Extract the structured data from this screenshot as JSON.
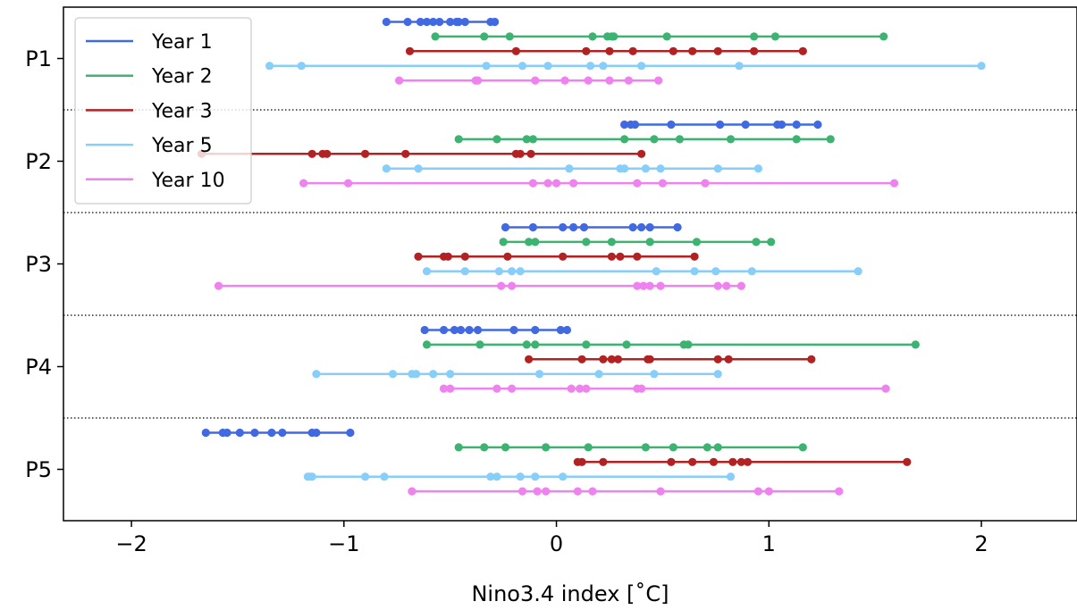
{
  "chart_data": {
    "type": "scatter",
    "title": "",
    "xlabel": "Nino3.4 index [˚C]",
    "ylabel": "",
    "xlim": [
      -2.32,
      2.45
    ],
    "x_ticks": [
      -2,
      -1,
      0,
      1,
      2
    ],
    "x_tick_labels": [
      "−2",
      "−1",
      "0",
      "1",
      "2"
    ],
    "categories": [
      "P1",
      "P2",
      "P3",
      "P4",
      "P5"
    ],
    "legend_position": "upper-left",
    "grid": false,
    "separator_style": "dotted",
    "series": [
      {
        "name": "Year 1",
        "color": "#4169e1"
      },
      {
        "name": "Year 2",
        "color": "#3cb371"
      },
      {
        "name": "Year 3",
        "color": "#b22222"
      },
      {
        "name": "Year 5",
        "color": "#87cefa"
      },
      {
        "name": "Year 10",
        "color": "#ee82ee"
      }
    ],
    "groups": [
      {
        "category": "P1",
        "values": [
          [
            -0.8,
            -0.7,
            -0.64,
            -0.61,
            -0.58,
            -0.55,
            -0.5,
            -0.47,
            -0.46,
            -0.43,
            -0.31,
            -0.29
          ],
          [
            -0.57,
            -0.34,
            -0.22,
            0.17,
            0.24,
            0.26,
            0.27,
            0.52,
            0.93,
            1.03,
            1.54
          ],
          [
            -0.69,
            -0.19,
            0.14,
            0.25,
            0.36,
            0.55,
            0.64,
            0.76,
            0.93,
            1.16
          ],
          [
            -1.35,
            -1.2,
            -0.33,
            -0.16,
            -0.04,
            0.16,
            0.22,
            0.4,
            0.86,
            2.0
          ],
          [
            -0.74,
            -0.38,
            -0.37,
            -0.1,
            0.04,
            0.15,
            0.25,
            0.34,
            0.48
          ]
        ]
      },
      {
        "category": "P2",
        "values": [
          [
            0.32,
            0.35,
            0.37,
            0.54,
            0.77,
            0.89,
            1.04,
            1.06,
            1.13,
            1.23
          ],
          [
            -0.46,
            -0.28,
            -0.14,
            -0.11,
            0.32,
            0.46,
            0.58,
            0.82,
            1.13,
            1.29
          ],
          [
            -1.67,
            -1.15,
            -1.1,
            -1.08,
            -0.9,
            -0.71,
            -0.19,
            -0.17,
            -0.12,
            0.4
          ],
          [
            -0.8,
            -0.65,
            0.06,
            0.3,
            0.32,
            0.42,
            0.49,
            0.76,
            0.95
          ],
          [
            -1.19,
            -0.98,
            -0.11,
            -0.04,
            0.0,
            0.08,
            0.38,
            0.5,
            0.7,
            1.59
          ]
        ]
      },
      {
        "category": "P3",
        "values": [
          [
            -0.24,
            -0.11,
            0.03,
            0.08,
            0.13,
            0.36,
            0.4,
            0.44,
            0.57
          ],
          [
            -0.25,
            -0.13,
            -0.1,
            0.14,
            0.26,
            0.44,
            0.66,
            0.94,
            1.01
          ],
          [
            -0.65,
            -0.53,
            -0.51,
            -0.43,
            -0.23,
            0.03,
            0.26,
            0.3,
            0.38,
            0.65
          ],
          [
            -0.61,
            -0.43,
            -0.27,
            -0.21,
            -0.17,
            0.47,
            0.65,
            0.75,
            0.92,
            1.42
          ],
          [
            -1.59,
            -0.26,
            -0.21,
            0.38,
            0.41,
            0.44,
            0.49,
            0.76,
            0.8,
            0.87
          ]
        ]
      },
      {
        "category": "P4",
        "values": [
          [
            -0.62,
            -0.53,
            -0.48,
            -0.45,
            -0.41,
            -0.37,
            -0.2,
            -0.1,
            0.02,
            0.05
          ],
          [
            -0.61,
            -0.36,
            -0.14,
            -0.1,
            0.14,
            0.33,
            0.6,
            0.62,
            1.69
          ],
          [
            -0.13,
            0.12,
            0.22,
            0.26,
            0.29,
            0.43,
            0.44,
            0.76,
            0.81,
            1.2
          ],
          [
            -1.13,
            -0.77,
            -0.68,
            -0.66,
            -0.58,
            -0.5,
            -0.08,
            0.2,
            0.46,
            0.76
          ],
          [
            -0.53,
            -0.5,
            -0.28,
            -0.21,
            0.07,
            0.11,
            0.14,
            0.38,
            0.4,
            1.55
          ]
        ]
      },
      {
        "category": "P5",
        "values": [
          [
            -1.65,
            -1.57,
            -1.55,
            -1.49,
            -1.42,
            -1.34,
            -1.29,
            -1.15,
            -1.13,
            -0.97
          ],
          [
            -0.46,
            -0.34,
            -0.24,
            -0.05,
            0.15,
            0.42,
            0.55,
            0.71,
            0.76,
            1.16
          ],
          [
            0.1,
            0.12,
            0.22,
            0.54,
            0.64,
            0.74,
            0.83,
            0.87,
            0.9,
            1.65
          ],
          [
            -1.17,
            -1.16,
            -1.15,
            -0.9,
            -0.81,
            -0.31,
            -0.28,
            -0.17,
            -0.1,
            0.03,
            0.82
          ],
          [
            -0.68,
            -0.16,
            -0.09,
            -0.05,
            0.1,
            0.17,
            0.49,
            0.95,
            1.0,
            1.33
          ]
        ]
      }
    ]
  }
}
